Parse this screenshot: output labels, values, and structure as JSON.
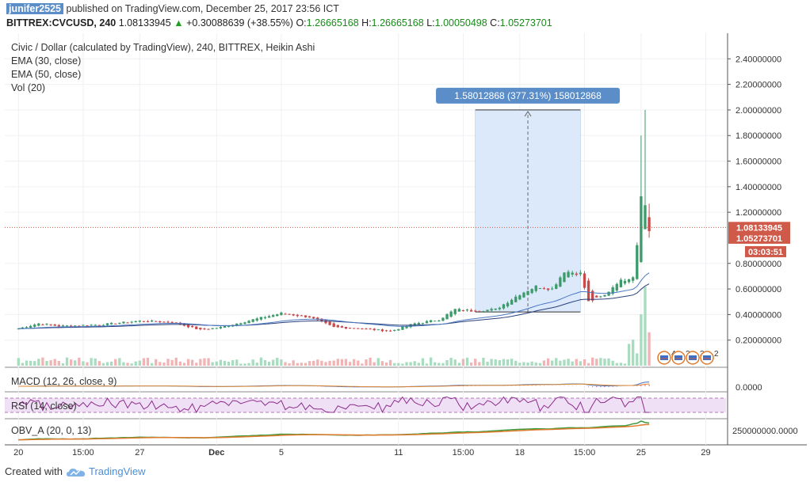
{
  "header": {
    "user": "junifer2525",
    "published": "published on TradingView.com, December 25, 2017 23:56 ICT",
    "symbol": "BITTREX:CVCUSD, 240",
    "last": "1.08133945",
    "change_arrow": "▲",
    "change": "+0.30088639 (+38.55%)",
    "o_label": "O:",
    "o": "1.26665168",
    "h_label": "H:",
    "h": "1.26665168",
    "l_label": "L:",
    "l": "1.00050498",
    "c_label": "C:",
    "c": "1.05273701"
  },
  "legend": {
    "title": "Civic / Dollar (calculated by TradingView), 240, BITTREX, Heikin Ashi",
    "ema30": "EMA (30, close)",
    "ema50": "EMA (50, close)",
    "vol": "Vol (20)"
  },
  "measure_label": "1.58012868 (377.31%) 158012868",
  "price_tags": {
    "last": "1.08133945",
    "close": "1.05273701",
    "timer": "03:03:51"
  },
  "panes": {
    "macd": "MACD (12, 26, close, 9)",
    "macd_tick": "0.0000",
    "rsi": "RSI (14, close)",
    "obv": "OBV_A (20, 0, 13)",
    "obv_tick": "250000000.0000"
  },
  "events": [
    "4",
    "2",
    "3",
    "2"
  ],
  "footer": {
    "created": "Created with",
    "brand": "TradingView"
  },
  "colors": {
    "up": "#3d9a6a",
    "down": "#c84a4a",
    "ema30": "#4a78c2",
    "ema50": "#2a3f7a",
    "measure": "#dbe9fb",
    "measure_tag": "#5b8ec9",
    "price_tag": "#d05a4a",
    "macd": "#3d6fc4",
    "signal": "#e08a2c",
    "rsi": "#8b2c8c",
    "obv": "#3d9a3d",
    "obv_sig": "#e07a2c"
  },
  "chart_data": {
    "type": "candlestick",
    "y_ticks": [
      "2.40000000",
      "2.20000000",
      "2.00000000",
      "1.80000000",
      "1.60000000",
      "1.40000000",
      "1.20000000",
      "0.80000000",
      "0.60000000",
      "0.40000000",
      "0.20000000"
    ],
    "y_tick_values": [
      2.4,
      2.2,
      2.0,
      1.8,
      1.6,
      1.4,
      1.2,
      0.8,
      0.6,
      0.4,
      0.2
    ],
    "ylim": [
      0.0,
      2.6
    ],
    "x_ticks": [
      "20",
      "15:00",
      "27",
      "Dec",
      "5",
      "11",
      "15:00",
      "18",
      "15:00",
      "25",
      "29"
    ],
    "x_tick_positions": [
      0,
      16,
      30,
      49,
      65,
      94,
      110,
      124,
      140,
      154,
      170
    ],
    "x_range": [
      -3,
      175
    ],
    "current_price": 1.08133945,
    "close_price": 1.05273701,
    "measure": {
      "from_index": 113,
      "to_index": 139,
      "low": 0.42,
      "high": 2.0
    },
    "anchors": [
      [
        0,
        0.29
      ],
      [
        5,
        0.33
      ],
      [
        10,
        0.31
      ],
      [
        20,
        0.32
      ],
      [
        30,
        0.35
      ],
      [
        38,
        0.34
      ],
      [
        45,
        0.28
      ],
      [
        50,
        0.3
      ],
      [
        58,
        0.36
      ],
      [
        65,
        0.41
      ],
      [
        72,
        0.38
      ],
      [
        78,
        0.3
      ],
      [
        85,
        0.29
      ],
      [
        92,
        0.27
      ],
      [
        98,
        0.33
      ],
      [
        104,
        0.36
      ],
      [
        108,
        0.44
      ],
      [
        112,
        0.43
      ],
      [
        118,
        0.44
      ],
      [
        124,
        0.56
      ],
      [
        128,
        0.62
      ],
      [
        132,
        0.6
      ],
      [
        135,
        0.74
      ],
      [
        139,
        0.72
      ],
      [
        141,
        0.5
      ],
      [
        145,
        0.55
      ],
      [
        148,
        0.65
      ],
      [
        152,
        0.7
      ],
      [
        153,
        0.95
      ],
      [
        154,
        1.35
      ],
      [
        155,
        1.25
      ],
      [
        156,
        1.06
      ]
    ]
  }
}
